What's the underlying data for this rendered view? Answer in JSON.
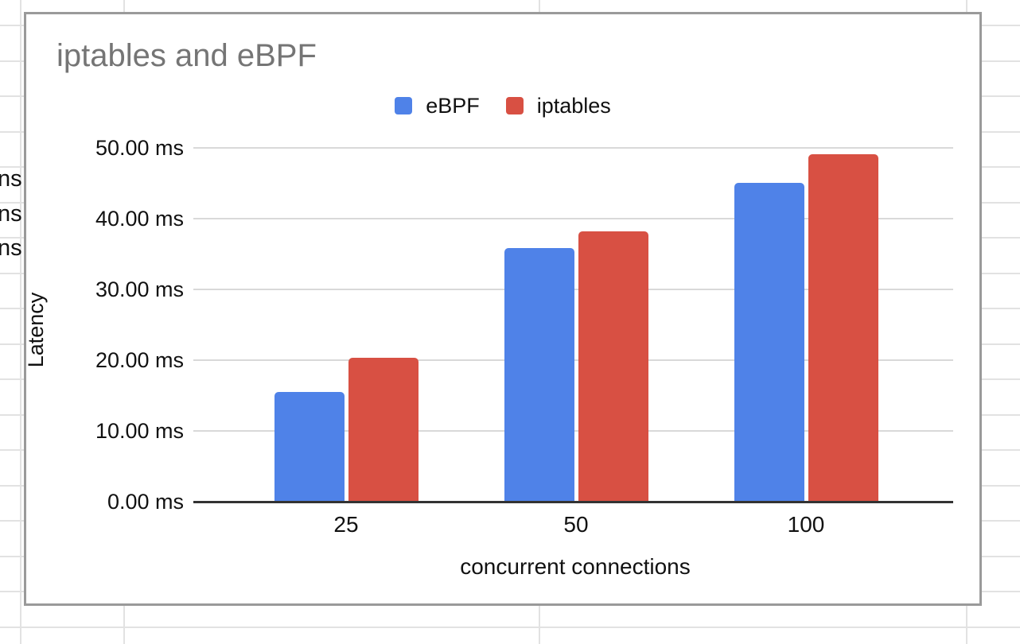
{
  "background": {
    "cell_fragments": [
      "ns",
      "ns",
      "ns"
    ]
  },
  "chart_data": {
    "type": "bar",
    "title": "iptables and eBPF",
    "categories": [
      "25",
      "50",
      "100"
    ],
    "series": [
      {
        "name": "eBPF",
        "color": "#4f82e8",
        "values": [
          15.4,
          35.7,
          44.9
        ]
      },
      {
        "name": "iptables",
        "color": "#d85043",
        "values": [
          20.2,
          38.1,
          49.0
        ]
      }
    ],
    "xlabel": "concurrent connections",
    "ylabel": "Latency",
    "yticks": [
      "0.00 ms",
      "10.00 ms",
      "20.00 ms",
      "30.00 ms",
      "40.00 ms",
      "50.00 ms"
    ],
    "ylim": [
      0,
      50
    ],
    "grid": true,
    "legend_position": "top",
    "colors": {
      "title_text": "#757575",
      "axis_text": "#111111",
      "gridline": "#d9d9d9",
      "axis_line": "#333333",
      "card_border": "#9a9a9a",
      "sheet_gridline": "#e2e2e2"
    }
  }
}
